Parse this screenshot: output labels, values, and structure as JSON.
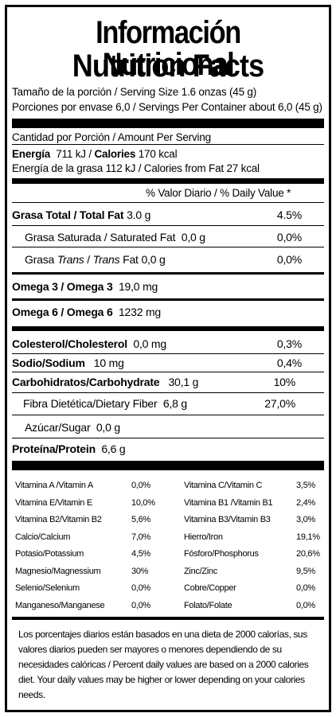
{
  "title_es": "Información Nutricional",
  "title_en": "Nutrition Facts",
  "serving_size": "Tamaño de la porción  / Serving Size 1.6 onzas (45 g)",
  "servings": "Porciones por envase  6,0 / Servings Per Container about 6,0 (45 g)",
  "amount_per_serving": "Cantidad por Porción / Amount Per Serving",
  "energy": {
    "label": "Energía",
    "kj": "711 kJ / ",
    "cal_label": "Calories",
    "cal_value": "170 kcal"
  },
  "energy_fat": "Energía de la grasa 112 kJ / Calories from Fat 27 kcal",
  "dv_header": "% Valor Diario / % Daily Value *",
  "rows": {
    "fat": {
      "label": "Grasa Total / Total Fat",
      "amount": "3.0 g",
      "pct": "4.5%"
    },
    "satfat": {
      "label": "Grasa Saturada / Saturated Fat",
      "amount": "0,0 g",
      "pct": "0,0%"
    },
    "transfat": {
      "label_a": "Grasa ",
      "label_i": "Trans",
      "label_b": " / ",
      "label_i2": "Trans",
      "label_c": " Fat",
      "amount": "0,0 g",
      "pct": "0,0%"
    },
    "omega3": {
      "label": "Omega 3 / Omega 3",
      "amount": "19,0 mg"
    },
    "omega6": {
      "label": "Omega 6 / Omega 6",
      "amount": "1232 mg"
    },
    "cholesterol": {
      "label": "Colesterol/Cholesterol",
      "amount": "0,0 mg",
      "pct": "0,3%"
    },
    "sodium": {
      "label": "Sodio/Sodium",
      "amount": "10 mg",
      "pct": "0,4%"
    },
    "carb": {
      "label": "Carbohidratos/Carbohydrate",
      "amount": "30,1 g",
      "pct": "10%"
    },
    "fiber": {
      "label": "Fibra Dietética/Dietary Fiber",
      "amount": "6,8 g",
      "pct": "27,0%"
    },
    "sugar": {
      "label": "Azúcar/Sugar",
      "amount": "0,0 g"
    },
    "protein": {
      "label": "Proteína/Protein",
      "amount": "6,6 g"
    }
  },
  "vitamins": [
    {
      "l1": "Vitamina A /Vitamin A",
      "v1": "0,0%",
      "l2": "Vitamina C/Vitamin C",
      "v2": "3,5%"
    },
    {
      "l1": "Vitamina E/Vitamin E",
      "v1": "10,0%",
      "l2": "Vitamina B1 /Vitamin B1",
      "v2": "2,4%"
    },
    {
      "l1": "Vitamina B2/Vitamin B2",
      "v1": "5,6%",
      "l2": "Vitamina B3/Vitamin B3",
      "v2": "3,0%"
    },
    {
      "l1": "Calcio/Calcium",
      "v1": "7,0%",
      "l2": "Hierro/Iron",
      "v2": "19,1%"
    },
    {
      "l1": "Potasio/Potassium",
      "v1": "4,5%",
      "l2": "Fósforo/Phosphorus",
      "v2": "20,6%"
    },
    {
      "l1": "Magnesio/Magnessium",
      "v1": "30%",
      "l2": "Zinc/Zinc",
      "v2": "9,5%"
    },
    {
      "l1": "Selenio/Selenium",
      "v1": "0,0%",
      "l2": "Cobre/Copper",
      "v2": "0,0%"
    },
    {
      "l1": "Manganeso/Manganese",
      "v1": "0,0%",
      "l2": "Folato/Folate",
      "v2": "0,0%"
    }
  ],
  "footnote": "Los porcentajes diarios están basados en una dieta de 2000 calorías, sus valores diarios pueden ser mayores o menores dependiendo de su necesidades calóricas / Percent daily values are based on a 2000 calories diet. Your daily values may be higher or lower depending on your calories needs."
}
